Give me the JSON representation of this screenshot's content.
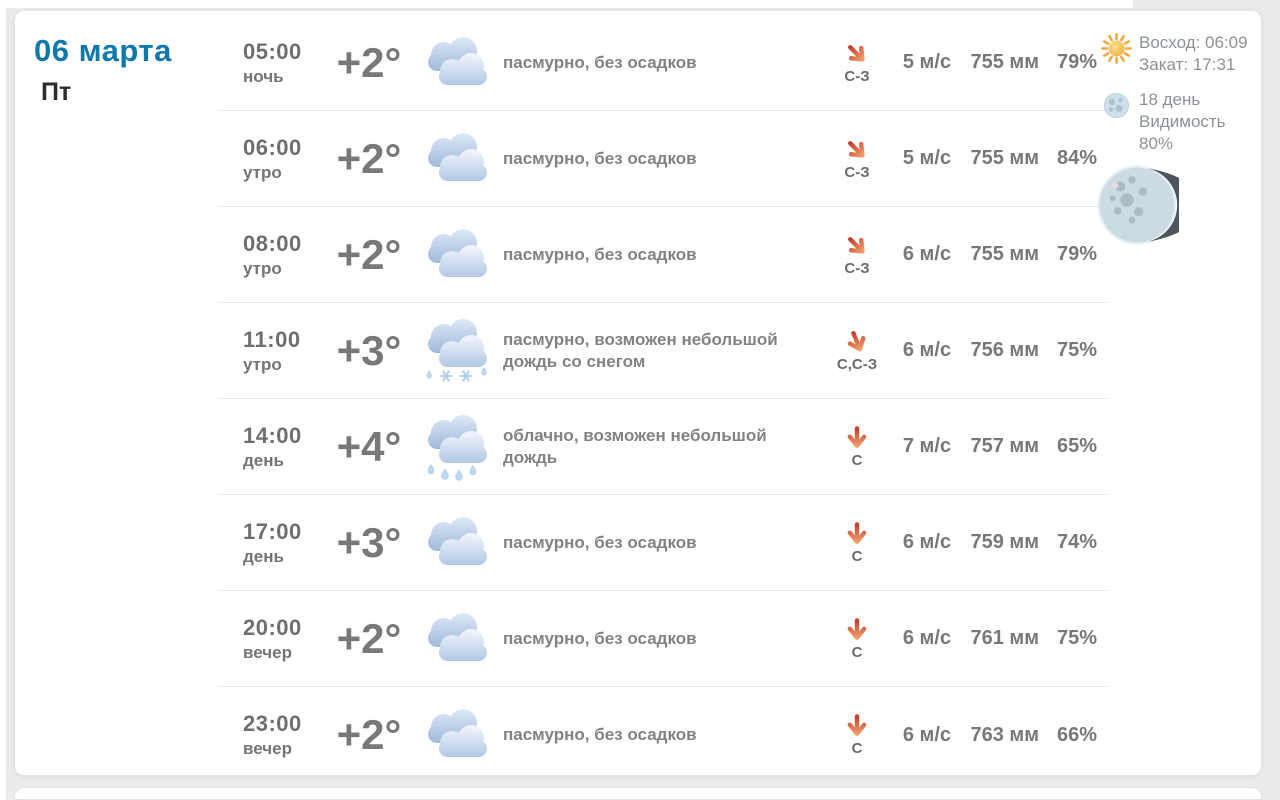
{
  "date": {
    "title": "06 марта",
    "weekday": "Пт"
  },
  "rows": [
    {
      "time": "05:00",
      "period": "ночь",
      "temp": "+2°",
      "icon": "overcast",
      "desc": "пасмурно, без осадков",
      "wind_dir": "С-З",
      "wind_rot": -45,
      "speed": "5 м/с",
      "pressure": "755 мм",
      "humidity": "79%"
    },
    {
      "time": "06:00",
      "period": "утро",
      "temp": "+2°",
      "icon": "overcast",
      "desc": "пасмурно, без осадков",
      "wind_dir": "С-З",
      "wind_rot": -45,
      "speed": "5 м/с",
      "pressure": "755 мм",
      "humidity": "84%"
    },
    {
      "time": "08:00",
      "period": "утро",
      "temp": "+2°",
      "icon": "overcast",
      "desc": "пасмурно, без осадков",
      "wind_dir": "С-З",
      "wind_rot": -45,
      "speed": "6 м/с",
      "pressure": "755 мм",
      "humidity": "79%"
    },
    {
      "time": "11:00",
      "period": "утро",
      "temp": "+3°",
      "icon": "snow-rain",
      "desc": "пасмурно, возможен небольшой дождь со снегом",
      "wind_dir": "С,С-З",
      "wind_rot": -22,
      "speed": "6 м/с",
      "pressure": "756 мм",
      "humidity": "75%"
    },
    {
      "time": "14:00",
      "period": "день",
      "temp": "+4°",
      "icon": "rain",
      "desc": "облачно, возможен небольшой дождь",
      "wind_dir": "С",
      "wind_rot": 0,
      "speed": "7 м/с",
      "pressure": "757 мм",
      "humidity": "65%"
    },
    {
      "time": "17:00",
      "period": "день",
      "temp": "+3°",
      "icon": "overcast",
      "desc": "пасмурно, без осадков",
      "wind_dir": "С",
      "wind_rot": 0,
      "speed": "6 м/с",
      "pressure": "759 мм",
      "humidity": "74%"
    },
    {
      "time": "20:00",
      "period": "вечер",
      "temp": "+2°",
      "icon": "overcast",
      "desc": "пасмурно, без осадков",
      "wind_dir": "С",
      "wind_rot": 0,
      "speed": "6 м/с",
      "pressure": "761 мм",
      "humidity": "75%"
    },
    {
      "time": "23:00",
      "period": "вечер",
      "temp": "+2°",
      "icon": "overcast",
      "desc": "пасмурно, без осадков",
      "wind_dir": "С",
      "wind_rot": 0,
      "speed": "6 м/с",
      "pressure": "763 мм",
      "humidity": "66%"
    }
  ],
  "sidebar": {
    "sunrise": "Восход: 06:09",
    "sunset": "Закат: 17:31",
    "moon_day": "18 день",
    "visibility_label": "Видимость",
    "visibility_value": "80%",
    "moon_phase": "waning-gibbous"
  },
  "colors": {
    "accent_blue": "#0f78ad",
    "text_gray": "#787878",
    "desc_gray": "#828282",
    "arrow_red": "#c23527",
    "arrow_orange": "#f8b078",
    "separator": "#e9e9e9",
    "page_gutter": "#eaebeb"
  }
}
